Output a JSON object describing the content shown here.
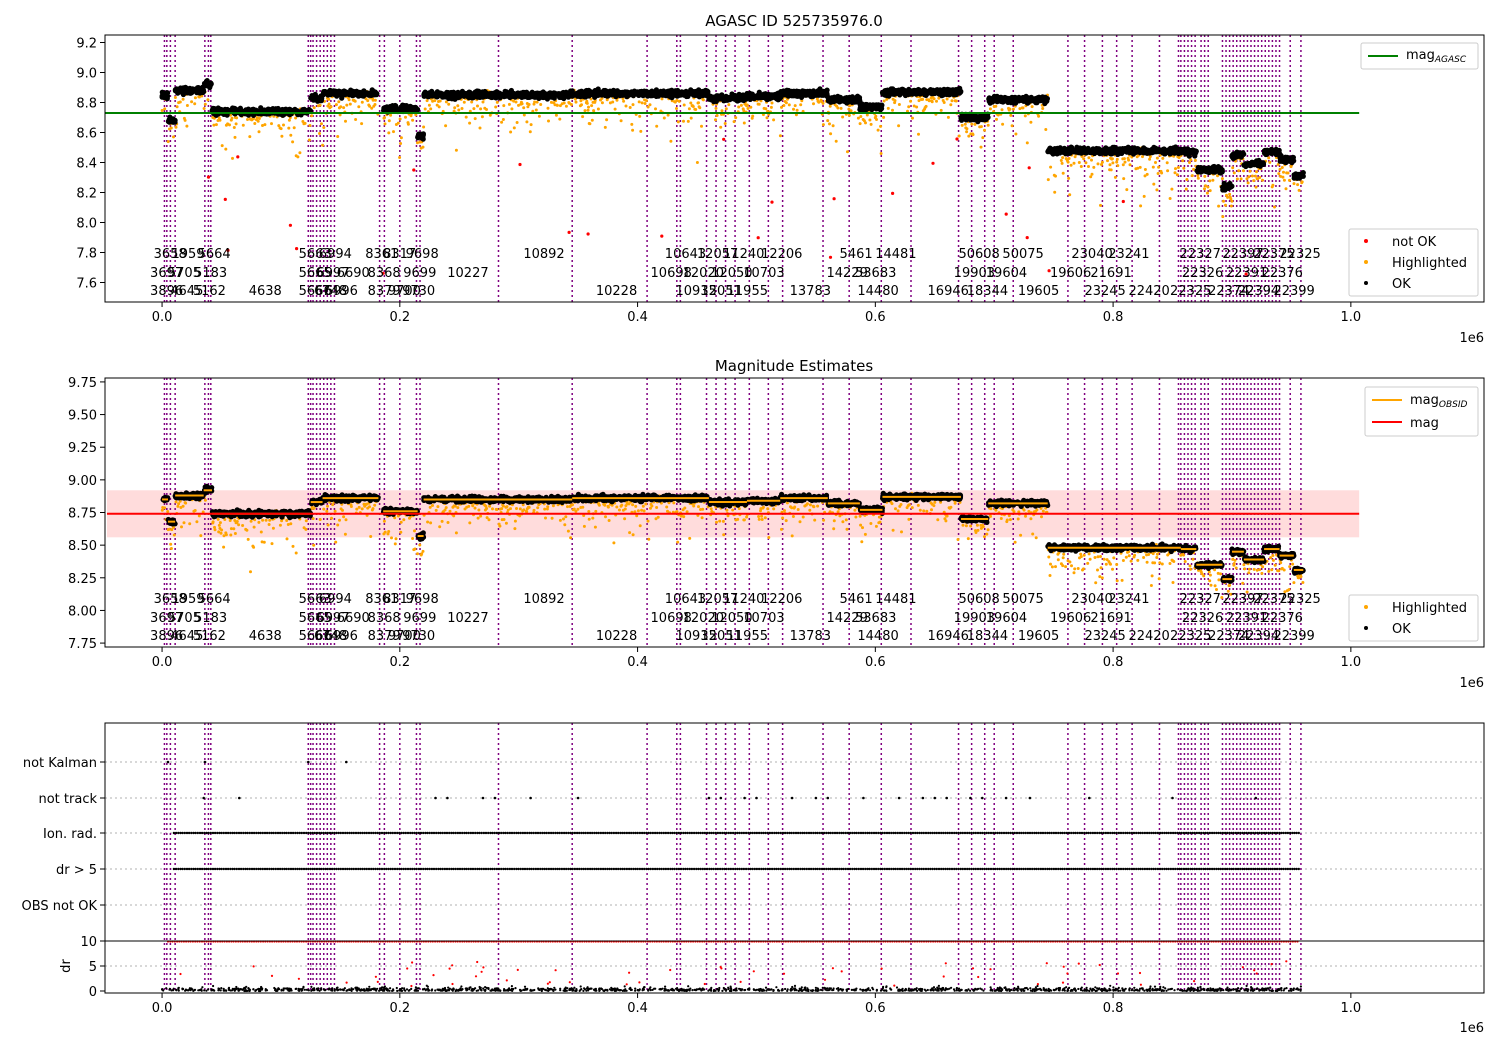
{
  "colors": {
    "ok": "#000000",
    "highlighted": "#ffa500",
    "not_ok": "#ff0000",
    "vline": "#800080",
    "agasc_line": "#008000",
    "mag_line": "#ff0000",
    "mag_band": "#ffd6d6",
    "obsid_line": "#ffa500",
    "grid": "#b0b0b0"
  },
  "chart_data": [
    {
      "type": "scatter",
      "title": "AGASC ID 525735976.0",
      "xlabel": "",
      "ylabel": "",
      "x_scale_label": "1e6",
      "xlim": [
        -0.048,
        1.112
      ],
      "ylim": [
        7.47,
        9.25
      ],
      "xticks": [
        "0.0",
        "0.2",
        "0.4",
        "0.6",
        "0.8",
        "1.0"
      ],
      "yticks": [
        "7.6",
        "7.8",
        "8.0",
        "8.2",
        "8.4",
        "8.6",
        "8.8",
        "9.0",
        "9.2"
      ],
      "hline": {
        "name": "mag_AGASC",
        "value": 8.73,
        "xrange": [
          -0.048,
          1.007
        ]
      },
      "legend": {
        "placement": "top-right + lower-right",
        "upper": [
          {
            "label": "mag",
            "sub": "AGASC",
            "kind": "line",
            "color": "green"
          }
        ],
        "lower": [
          {
            "label": "not OK",
            "kind": "dot",
            "color": "red"
          },
          {
            "label": "Highlighted",
            "kind": "dot",
            "color": "orange"
          },
          {
            "label": "OK",
            "kind": "dot",
            "color": "black"
          }
        ]
      },
      "segments": [
        [
          0.0,
          0.005,
          8.85
        ],
        [
          0.005,
          0.011,
          8.68
        ],
        [
          0.011,
          0.035,
          8.88
        ],
        [
          0.035,
          0.042,
          8.92
        ],
        [
          0.042,
          0.125,
          8.74
        ],
        [
          0.125,
          0.135,
          8.83
        ],
        [
          0.135,
          0.182,
          8.86
        ],
        [
          0.186,
          0.215,
          8.76
        ],
        [
          0.215,
          0.22,
          8.57
        ],
        [
          0.22,
          0.345,
          8.85
        ],
        [
          0.345,
          0.46,
          8.86
        ],
        [
          0.46,
          0.492,
          8.83
        ],
        [
          0.492,
          0.52,
          8.84
        ],
        [
          0.52,
          0.56,
          8.86
        ],
        [
          0.56,
          0.587,
          8.82
        ],
        [
          0.587,
          0.606,
          8.77
        ],
        [
          0.606,
          0.672,
          8.87
        ],
        [
          0.672,
          0.695,
          8.7
        ],
        [
          0.695,
          0.745,
          8.82
        ],
        [
          0.745,
          0.857,
          8.48
        ],
        [
          0.857,
          0.87,
          8.47
        ],
        [
          0.87,
          0.892,
          8.35
        ],
        [
          0.892,
          0.9,
          8.24
        ],
        [
          0.9,
          0.91,
          8.45
        ],
        [
          0.91,
          0.927,
          8.39
        ],
        [
          0.927,
          0.94,
          8.47
        ],
        [
          0.94,
          0.952,
          8.42
        ],
        [
          0.952,
          0.96,
          8.31
        ]
      ],
      "obsid_lines": [
        0.002,
        0.004,
        0.007,
        0.011,
        0.036,
        0.039,
        0.041,
        0.123,
        0.125,
        0.127,
        0.13,
        0.133,
        0.136,
        0.139,
        0.142,
        0.145,
        0.183,
        0.187,
        0.2,
        0.214,
        0.217,
        0.283,
        0.345,
        0.408,
        0.433,
        0.436,
        0.458,
        0.466,
        0.474,
        0.482,
        0.494,
        0.51,
        0.522,
        0.556,
        0.578,
        0.605,
        0.63,
        0.67,
        0.681,
        0.692,
        0.7,
        0.716,
        0.762,
        0.776,
        0.791,
        0.803,
        0.816,
        0.839,
        0.855,
        0.857,
        0.86,
        0.863,
        0.866,
        0.869,
        0.874,
        0.877,
        0.88,
        0.892,
        0.895,
        0.898,
        0.901,
        0.904,
        0.907,
        0.91,
        0.913,
        0.916,
        0.919,
        0.922,
        0.925,
        0.928,
        0.931,
        0.934,
        0.937,
        0.94,
        0.949,
        0.958
      ],
      "obsid_labels": [
        {
          "text": "3658",
          "x": 0.003,
          "row": 0
        },
        {
          "text": "1959",
          "x": 0.018,
          "row": 0
        },
        {
          "text": "5664",
          "x": 0.04,
          "row": 0
        },
        {
          "text": "5663",
          "x": 0.125,
          "row": 0
        },
        {
          "text": "6994",
          "x": 0.142,
          "row": 0
        },
        {
          "text": "8361",
          "x": 0.181,
          "row": 0
        },
        {
          "text": "8317",
          "x": 0.196,
          "row": 0
        },
        {
          "text": "9698",
          "x": 0.215,
          "row": 0
        },
        {
          "text": "10892",
          "x": 0.314,
          "row": 0
        },
        {
          "text": "10643",
          "x": 0.433,
          "row": 0
        },
        {
          "text": "12057",
          "x": 0.46,
          "row": 0
        },
        {
          "text": "11240",
          "x": 0.482,
          "row": 0
        },
        {
          "text": "12206",
          "x": 0.514,
          "row": 0
        },
        {
          "text": "5461",
          "x": 0.58,
          "row": 0
        },
        {
          "text": "14481",
          "x": 0.61,
          "row": 0
        },
        {
          "text": "50608",
          "x": 0.68,
          "row": 0
        },
        {
          "text": "50075",
          "x": 0.717,
          "row": 0
        },
        {
          "text": "23040",
          "x": 0.775,
          "row": 0
        },
        {
          "text": "23241",
          "x": 0.806,
          "row": 0
        },
        {
          "text": "22327",
          "x": 0.866,
          "row": 0
        },
        {
          "text": "22397",
          "x": 0.902,
          "row": 0
        },
        {
          "text": "22375",
          "x": 0.928,
          "row": 0
        },
        {
          "text": "22325",
          "x": 0.95,
          "row": 0
        },
        {
          "text": "3697",
          "x": 0.0,
          "row": 1
        },
        {
          "text": "5705",
          "x": 0.015,
          "row": 1
        },
        {
          "text": "5183",
          "x": 0.037,
          "row": 1
        },
        {
          "text": "5665",
          "x": 0.125,
          "row": 1
        },
        {
          "text": "6997",
          "x": 0.14,
          "row": 1
        },
        {
          "text": "6690",
          "x": 0.157,
          "row": 1
        },
        {
          "text": "8368",
          "x": 0.183,
          "row": 1
        },
        {
          "text": "9699",
          "x": 0.213,
          "row": 1
        },
        {
          "text": "10227",
          "x": 0.25,
          "row": 1
        },
        {
          "text": "10698",
          "x": 0.421,
          "row": 1
        },
        {
          "text": "12020",
          "x": 0.448,
          "row": 1
        },
        {
          "text": "12050",
          "x": 0.472,
          "row": 1
        },
        {
          "text": "10703",
          "x": 0.499,
          "row": 1
        },
        {
          "text": "14229",
          "x": 0.569,
          "row": 1
        },
        {
          "text": "53683",
          "x": 0.593,
          "row": 1
        },
        {
          "text": "19903",
          "x": 0.676,
          "row": 1
        },
        {
          "text": "19604",
          "x": 0.703,
          "row": 1
        },
        {
          "text": "19606",
          "x": 0.757,
          "row": 1
        },
        {
          "text": "21691",
          "x": 0.791,
          "row": 1
        },
        {
          "text": "22326",
          "x": 0.868,
          "row": 1
        },
        {
          "text": "22391",
          "x": 0.905,
          "row": 1
        },
        {
          "text": "22376",
          "x": 0.935,
          "row": 1
        },
        {
          "text": "3896",
          "x": 0.0,
          "row": 2
        },
        {
          "text": "4645",
          "x": 0.017,
          "row": 2
        },
        {
          "text": "5162",
          "x": 0.036,
          "row": 2
        },
        {
          "text": "4638",
          "x": 0.083,
          "row": 2
        },
        {
          "text": "5666",
          "x": 0.125,
          "row": 2
        },
        {
          "text": "6748",
          "x": 0.138,
          "row": 2
        },
        {
          "text": "6996",
          "x": 0.147,
          "row": 2
        },
        {
          "text": "8379",
          "x": 0.183,
          "row": 2
        },
        {
          "text": "9700",
          "x": 0.2,
          "row": 2
        },
        {
          "text": "9730",
          "x": 0.212,
          "row": 2
        },
        {
          "text": "10228",
          "x": 0.375,
          "row": 2
        },
        {
          "text": "10935",
          "x": 0.442,
          "row": 2
        },
        {
          "text": "12051",
          "x": 0.463,
          "row": 2
        },
        {
          "text": "11955",
          "x": 0.485,
          "row": 2
        },
        {
          "text": "13783",
          "x": 0.538,
          "row": 2
        },
        {
          "text": "14480",
          "x": 0.595,
          "row": 2
        },
        {
          "text": "16946",
          "x": 0.654,
          "row": 2
        },
        {
          "text": "18344",
          "x": 0.687,
          "row": 2
        },
        {
          "text": "19605",
          "x": 0.73,
          "row": 2
        },
        {
          "text": "23245",
          "x": 0.786,
          "row": 2
        },
        {
          "text": "22420",
          "x": 0.823,
          "row": 2
        },
        {
          "text": "22325",
          "x": 0.858,
          "row": 2
        },
        {
          "text": "22374",
          "x": 0.89,
          "row": 2
        },
        {
          "text": "22394",
          "x": 0.915,
          "row": 2
        },
        {
          "text": "22399",
          "x": 0.945,
          "row": 2
        }
      ]
    },
    {
      "type": "scatter",
      "title": "Magnitude Estimates",
      "xlabel": "",
      "ylabel": "",
      "x_scale_label": "1e6",
      "xlim": [
        -0.048,
        1.112
      ],
      "ylim": [
        7.72,
        9.78
      ],
      "xticks": [
        "0.0",
        "0.2",
        "0.4",
        "0.6",
        "0.8",
        "1.0"
      ],
      "yticks": [
        "7.75",
        "8.00",
        "8.25",
        "8.50",
        "8.75",
        "9.00",
        "9.25",
        "9.50",
        "9.75"
      ],
      "mag_mean": 8.74,
      "mag_band": [
        8.56,
        8.92
      ],
      "legend": {
        "placement": "top-right + lower-right",
        "upper": [
          {
            "label": "mag",
            "sub": "OBSID",
            "kind": "line",
            "color": "orange"
          },
          {
            "label": "mag",
            "kind": "line",
            "color": "red"
          }
        ],
        "lower": [
          {
            "label": "Highlighted",
            "kind": "dot",
            "color": "orange"
          },
          {
            "label": "OK",
            "kind": "dot",
            "color": "black"
          }
        ]
      }
    },
    {
      "type": "scatter",
      "title": "",
      "xlabel": "",
      "ylabel": "dr",
      "x_scale_label": "1e6",
      "xlim": [
        -0.048,
        1.112
      ],
      "xticks": [
        "0.0",
        "0.2",
        "0.4",
        "0.6",
        "0.8",
        "1.0"
      ],
      "flag_rows": [
        "not Kalman",
        "not track",
        "Ion. rad.",
        "dr > 5",
        "OBS not OK"
      ],
      "dr_ticks": [
        "0",
        "5",
        "10"
      ],
      "dr_cap": 10,
      "dr_threshold": 10
    }
  ]
}
